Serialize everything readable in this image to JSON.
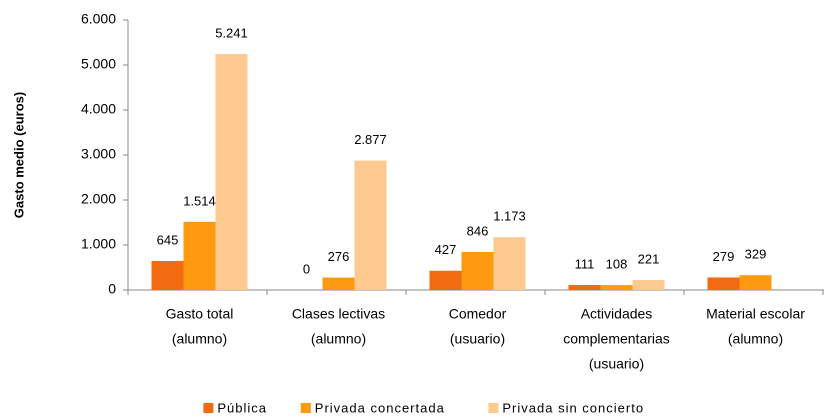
{
  "chart_data": {
    "type": "bar",
    "y_label": "Gasto medio (euros)",
    "categories": [
      [
        "Gasto total",
        "(alumno)"
      ],
      [
        "Clases lectivas",
        "(alumno)"
      ],
      [
        "Comedor",
        "(usuario)"
      ],
      [
        "Actividades",
        "complementarias",
        "(usuario)"
      ],
      [
        "Material escolar",
        "(alumno)"
      ]
    ],
    "series": [
      {
        "name": "Pública",
        "color": "#f26b10",
        "values": [
          645,
          0,
          427,
          111,
          279
        ]
      },
      {
        "name": "Privada concertada",
        "color": "#fd9a10",
        "values": [
          1514,
          276,
          846,
          108,
          329
        ],
        "value_labels": [
          "1.514",
          "276",
          "846",
          "108",
          "329"
        ]
      },
      {
        "name": "Privada sin concierto",
        "color": "#fdc98e",
        "values": [
          5241,
          2877,
          1173,
          221,
          null
        ],
        "value_labels": [
          "5.241",
          "2.877",
          "1.173",
          "221",
          null
        ]
      }
    ],
    "ylim": [
      0,
      6000
    ],
    "yticks": [
      0,
      {
        "value": 1000,
        "label": "1.000"
      },
      {
        "value": 2000,
        "label": "2.000"
      },
      {
        "value": 3000,
        "label": "3.000"
      },
      {
        "value": 4000,
        "label": "4.000"
      },
      {
        "value": 5000,
        "label": "5.000"
      },
      {
        "value": 6000,
        "label": "6.000"
      }
    ],
    "legend": "bottom"
  }
}
